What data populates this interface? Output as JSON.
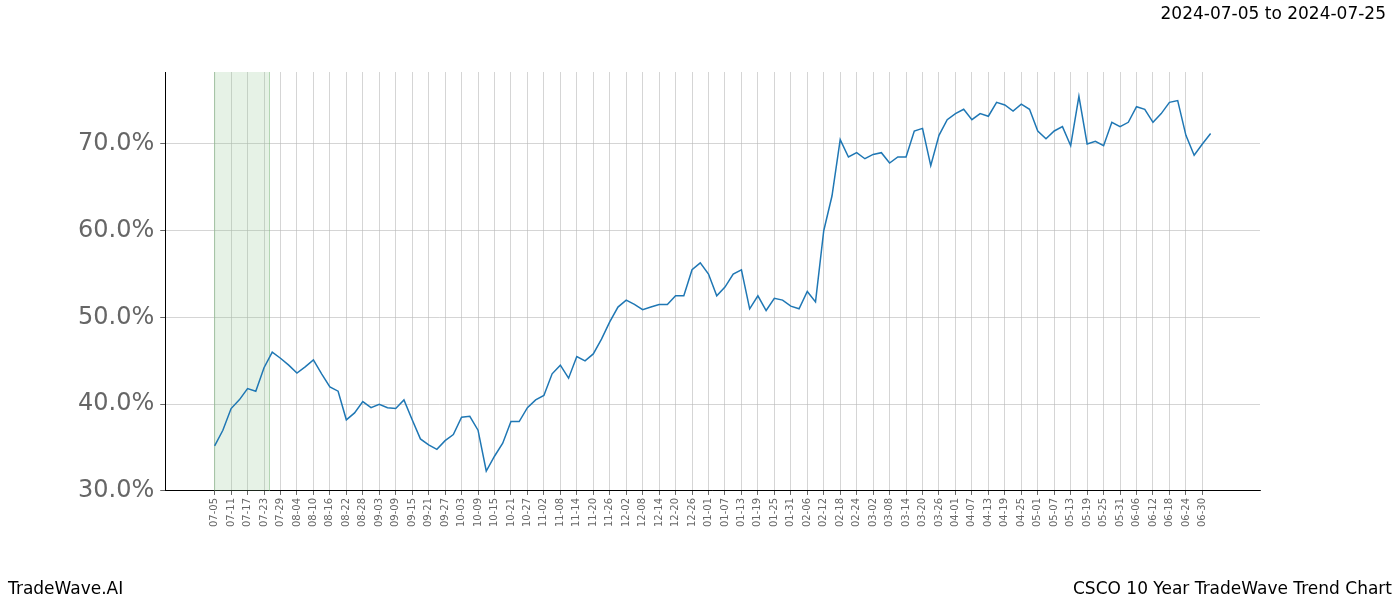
{
  "chart_data": {
    "type": "line",
    "title": "2024-07-05 to 2024-07-25",
    "brand": "TradeWave.AI",
    "caption": "CSCO 10 Year TradeWave Trend Chart",
    "categories": [
      "07-05",
      null,
      "07-11",
      null,
      "07-17",
      null,
      "07-23",
      null,
      "07-29",
      null,
      "08-04",
      null,
      "08-10",
      null,
      "08-16",
      null,
      "08-22",
      null,
      "08-28",
      null,
      "09-03",
      null,
      "09-09",
      null,
      "09-15",
      null,
      "09-21",
      null,
      "09-27",
      null,
      "10-03",
      null,
      "10-09",
      null,
      "10-15",
      null,
      "10-21",
      null,
      "10-27",
      null,
      "11-02",
      null,
      "11-08",
      null,
      "11-14",
      null,
      "11-20",
      null,
      "11-26",
      null,
      "12-02",
      null,
      "12-08",
      null,
      "12-14",
      null,
      "12-20",
      null,
      "12-26",
      null,
      "01-01",
      null,
      "01-07",
      null,
      "01-13",
      null,
      "01-19",
      null,
      "01-25",
      null,
      "01-31",
      null,
      "02-06",
      null,
      "02-12",
      null,
      "02-18",
      null,
      "02-24",
      null,
      "03-02",
      null,
      "03-08",
      null,
      "03-14",
      null,
      "03-20",
      null,
      "03-26",
      null,
      "04-01",
      null,
      "04-07",
      null,
      "04-13",
      null,
      "04-19",
      null,
      "04-25",
      null,
      "05-01",
      null,
      "05-07",
      null,
      "05-13",
      null,
      "05-19",
      null,
      "05-25",
      null,
      "05-31",
      null,
      "06-06",
      null,
      "06-12",
      null,
      "06-18",
      null,
      "06-24",
      null,
      "06-30",
      null
    ],
    "values": [
      35.2,
      37.0,
      39.5,
      40.5,
      41.8,
      41.5,
      44.2,
      46.0,
      45.3,
      44.5,
      43.6,
      44.3,
      45.1,
      43.5,
      42.0,
      41.5,
      38.2,
      39.0,
      40.3,
      39.6,
      40.0,
      39.6,
      39.5,
      40.5,
      38.2,
      36.0,
      35.3,
      34.8,
      35.8,
      36.5,
      38.5,
      38.6,
      37.0,
      32.3,
      34.0,
      35.5,
      38.0,
      38.0,
      39.6,
      40.5,
      41.0,
      43.5,
      44.5,
      43.0,
      45.5,
      45.0,
      45.8,
      47.5,
      49.5,
      51.2,
      52.0,
      51.5,
      50.9,
      51.2,
      51.5,
      51.5,
      52.5,
      52.5,
      55.5,
      56.3,
      55.0,
      52.5,
      53.5,
      55.0,
      55.5,
      51.0,
      52.5,
      50.8,
      52.2,
      52.0,
      51.3,
      51.0,
      53.0,
      51.8,
      60.0,
      64.0,
      70.5,
      68.5,
      69.0,
      68.3,
      68.8,
      69.0,
      67.8,
      68.5,
      68.5,
      71.5,
      71.8,
      67.5,
      71.0,
      72.8,
      73.5,
      74.0,
      72.8,
      73.5,
      73.2,
      74.8,
      74.5,
      73.8,
      74.6,
      74.0,
      71.5,
      70.6,
      71.5,
      72.0,
      69.8,
      75.5,
      70.0,
      70.3,
      69.8,
      72.5,
      72.0,
      72.5,
      74.3,
      74.0,
      72.5,
      73.5,
      74.8,
      75.0,
      71.0,
      68.7,
      70.0,
      71.2
    ],
    "color": "#1f77b4",
    "ylim": [
      30,
      78.3
    ],
    "yticks": [
      {
        "value": 30,
        "label": "30.0%"
      },
      {
        "value": 40,
        "label": "40.0%"
      },
      {
        "value": 50,
        "label": "50.0%"
      },
      {
        "value": 60,
        "label": "60.0%"
      },
      {
        "value": 70,
        "label": "70.0%"
      }
    ],
    "grid": true
  }
}
